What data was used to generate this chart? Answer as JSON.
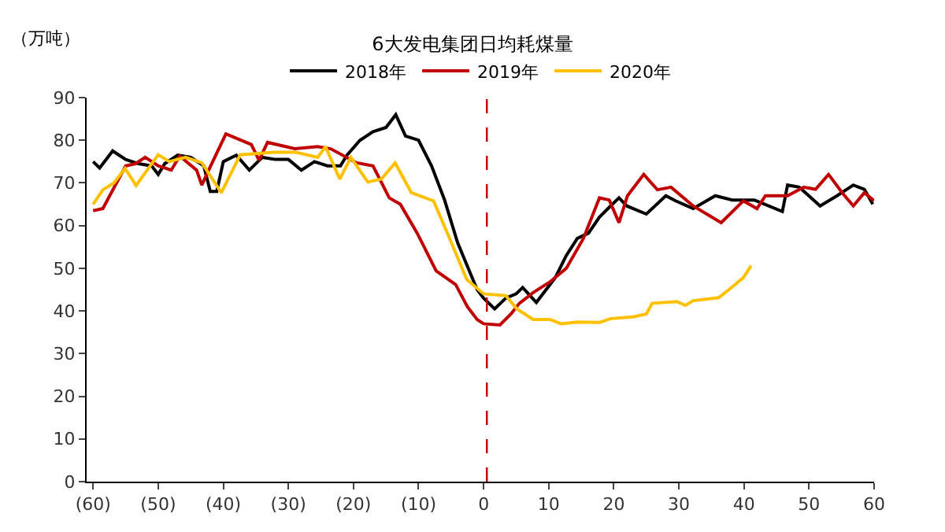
{
  "chart_data": {
    "type": "line",
    "title": "6大发电集团日均耗煤量",
    "ylabel": "（万吨）",
    "xlim": [
      -61,
      60
    ],
    "ylim": [
      0,
      90
    ],
    "xticks": [
      {
        "value": -60,
        "label": "(60)"
      },
      {
        "value": -50,
        "label": "(50)"
      },
      {
        "value": -40,
        "label": "(40)"
      },
      {
        "value": -30,
        "label": "(30)"
      },
      {
        "value": -20,
        "label": "(20)"
      },
      {
        "value": -10,
        "label": "(10)"
      },
      0,
      10,
      20,
      30,
      40,
      50,
      60
    ],
    "yticks": [
      0,
      10,
      20,
      30,
      40,
      50,
      60,
      70,
      80,
      90
    ],
    "legend": "top",
    "marker": "none",
    "line_style": "solid",
    "ref_lines": [
      {
        "axis": "x",
        "value": 0.5,
        "color": "#c00000",
        "line_style": "dashed"
      }
    ],
    "series": [
      {
        "name": "2018年",
        "color": "#000000",
        "x": [
          -60,
          -59,
          -57,
          -55,
          -53,
          -51,
          -50,
          -49,
          -47,
          -45,
          -44,
          -43,
          -42,
          -41,
          -40,
          -38,
          -36,
          -34,
          -32,
          -30,
          -28,
          -26,
          -24,
          -22,
          -21,
          -19,
          -17,
          -15,
          -13.5,
          -12,
          -10,
          -8,
          -6,
          -4,
          -2.5,
          -1,
          0,
          1.7,
          3.4,
          5,
          6,
          8.1,
          11,
          12.7,
          14.4,
          16.1,
          17.8,
          19.5,
          20.8,
          22,
          25,
          28,
          29.5,
          32.2,
          35.6,
          38.2,
          41.6,
          45.9,
          46.7,
          48.5,
          51.7,
          54.3,
          56.8,
          58.5,
          59.8
        ],
        "values": [
          75,
          73.5,
          77.5,
          75.5,
          74.5,
          74,
          72,
          74.5,
          76.5,
          76,
          75,
          74,
          68,
          68,
          75,
          76.5,
          73,
          76,
          75.5,
          75.5,
          73,
          75,
          74,
          74,
          76.5,
          80,
          82,
          83,
          86,
          81,
          80,
          74,
          66,
          56,
          50.5,
          45,
          43,
          40.5,
          43,
          44,
          45.5,
          42,
          47.8,
          53,
          57,
          58.2,
          62,
          64.6,
          66.5,
          64.6,
          62.7,
          67,
          65.8,
          64,
          67,
          66,
          66,
          63.3,
          69.5,
          69,
          64.6,
          67,
          69.5,
          68.5,
          65
        ]
      },
      {
        "name": "2019年",
        "color": "#c00000",
        "x": [
          -60,
          -58.5,
          -55,
          -53.5,
          -52,
          -50,
          -48,
          -46.7,
          -44.1,
          -43.3,
          -42,
          -39.6,
          -35.7,
          -34.5,
          -33.2,
          -29,
          -25.5,
          -23.5,
          -19.5,
          -17,
          -14.5,
          -12.8,
          -10.2,
          -7.3,
          -4.3,
          -2.5,
          -1,
          0,
          2.5,
          4.2,
          5.5,
          7.6,
          10.2,
          12.7,
          15.3,
          17.8,
          19.3,
          20.8,
          22.1,
          24.6,
          26.7,
          28.8,
          32.2,
          36.5,
          39.9,
          42,
          43.3,
          46.7,
          49.2,
          51,
          53,
          55.1,
          56.8,
          58.5,
          60
        ],
        "values": [
          63.5,
          64,
          74,
          74.5,
          76,
          74,
          73,
          76.3,
          73,
          69.5,
          73.8,
          81.5,
          79,
          75.3,
          79.5,
          78,
          78.5,
          78,
          74.7,
          74,
          66.5,
          65,
          58.2,
          49.4,
          46.2,
          41,
          38,
          37,
          36.7,
          39.3,
          41.8,
          44.3,
          46.8,
          50,
          56.9,
          66.5,
          66,
          60.7,
          67,
          72,
          68.4,
          69,
          64.6,
          60.7,
          65.8,
          64,
          67,
          67,
          69,
          68.5,
          72,
          67.7,
          64.6,
          67.7,
          65.8
        ]
      },
      {
        "name": "2020年",
        "color": "#ffc000",
        "x": [
          -60,
          -58.5,
          -56.8,
          -55.1,
          -53.4,
          -50,
          -48.3,
          -45.8,
          -43.3,
          -40.3,
          -37.4,
          -32.3,
          -28.9,
          -25.5,
          -24.3,
          -22.1,
          -20.4,
          -17.8,
          -15.7,
          -13.6,
          -11.1,
          -7.7,
          -5.2,
          -2.6,
          0,
          3.4,
          5.1,
          7.6,
          10.2,
          11.9,
          14.4,
          17.8,
          19.5,
          22.9,
          25,
          25.9,
          29.7,
          31,
          32.2,
          36.1,
          37.7,
          39.9,
          41.1
        ],
        "values": [
          65,
          68.4,
          70,
          73.4,
          69.4,
          76.6,
          75,
          76,
          74.7,
          67.7,
          76.6,
          77.2,
          77.2,
          76,
          78.5,
          70.9,
          76,
          70.2,
          70.9,
          74.7,
          67.7,
          65.8,
          56.9,
          47.4,
          44,
          43.6,
          40.5,
          38,
          38,
          37,
          37.4,
          37.3,
          38.2,
          38.6,
          39.3,
          41.8,
          42.2,
          41.3,
          42.4,
          43.1,
          45,
          47.8,
          50.6
        ]
      }
    ]
  }
}
